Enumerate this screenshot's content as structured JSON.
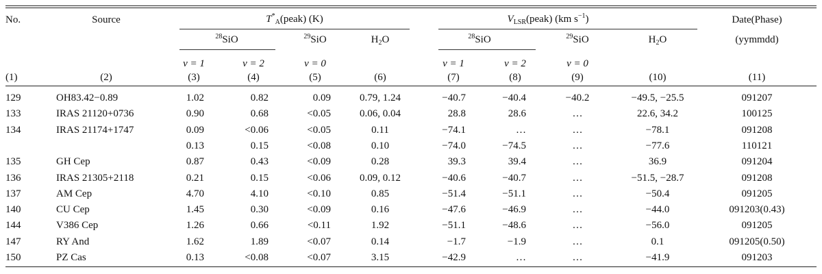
{
  "header": {
    "no": "No.",
    "source": "Source",
    "tpeak": {
      "sym": "T",
      "sup": "*",
      "sub": "A",
      "rest": "(peak) (K)"
    },
    "vpeak": {
      "sym": "V",
      "sub": "LSR",
      "rest": "(peak) (km s",
      "exp": "−1",
      "close": ")"
    },
    "date_label": "Date(Phase)",
    "date_fmt": "(yymmdd)",
    "iso28": {
      "mass": "28",
      "mol": "SiO"
    },
    "iso29": {
      "mass": "29",
      "mol": "SiO"
    },
    "h2o": {
      "a": "H",
      "sub": "2",
      "b": "O"
    },
    "v1": "v = 1",
    "v2": "v = 2",
    "v0": "v = 0",
    "nums": [
      "(1)",
      "(2)",
      "(3)",
      "(4)",
      "(5)",
      "(6)",
      "(7)",
      "(8)",
      "(9)",
      "(10)",
      "(11)"
    ]
  },
  "rows": [
    [
      "129",
      "OH83.42−0.89",
      "1.02",
      "0.82",
      "0.09",
      "0.79, 1.24",
      "−40.7",
      "−40.4",
      "−40.2",
      "−49.5, −25.5",
      "091207"
    ],
    [
      "133",
      "IRAS 21120+0736",
      "0.90",
      "0.68",
      "<0.05",
      "0.06, 0.04",
      "28.8",
      "28.6",
      "…",
      "22.6, 34.2",
      "100125"
    ],
    [
      "134",
      "IRAS 21174+1747",
      "0.09",
      "<0.06",
      "<0.05",
      "0.11",
      "−74.1",
      "…",
      "…",
      "−78.1",
      "091208"
    ],
    [
      "",
      "",
      "0.13",
      "0.15",
      "<0.08",
      "0.10",
      "−74.0",
      "−74.5",
      "…",
      "−77.6",
      "110121"
    ],
    [
      "135",
      "GH Cep",
      "0.87",
      "0.43",
      "<0.09",
      "0.28",
      "39.3",
      "39.4",
      "…",
      "36.9",
      "091204"
    ],
    [
      "136",
      "IRAS 21305+2118",
      "0.21",
      "0.15",
      "<0.06",
      "0.09, 0.12",
      "−40.6",
      "−40.7",
      "…",
      "−51.5, −28.7",
      "091208"
    ],
    [
      "137",
      "AM Cep",
      "4.70",
      "4.10",
      "<0.10",
      "0.85",
      "−51.4",
      "−51.1",
      "…",
      "−50.4",
      "091205"
    ],
    [
      "140",
      "CU Cep",
      "1.45",
      "0.30",
      "<0.09",
      "0.16",
      "−47.6",
      "−46.9",
      "…",
      "−44.0",
      "091203(0.43)"
    ],
    [
      "144",
      "V386 Cep",
      "1.26",
      "0.66",
      "<0.11",
      "1.92",
      "−51.1",
      "−48.6",
      "…",
      "−56.0",
      "091205"
    ],
    [
      "147",
      "RY And",
      "1.62",
      "1.89",
      "<0.07",
      "0.14",
      "−1.7",
      "−1.9",
      "…",
      "0.1",
      "091205(0.50)"
    ],
    [
      "150",
      "PZ Cas",
      "0.13",
      "<0.08",
      "<0.07",
      "3.15",
      "−42.9",
      "…",
      "…",
      "−41.9",
      "091203"
    ]
  ]
}
